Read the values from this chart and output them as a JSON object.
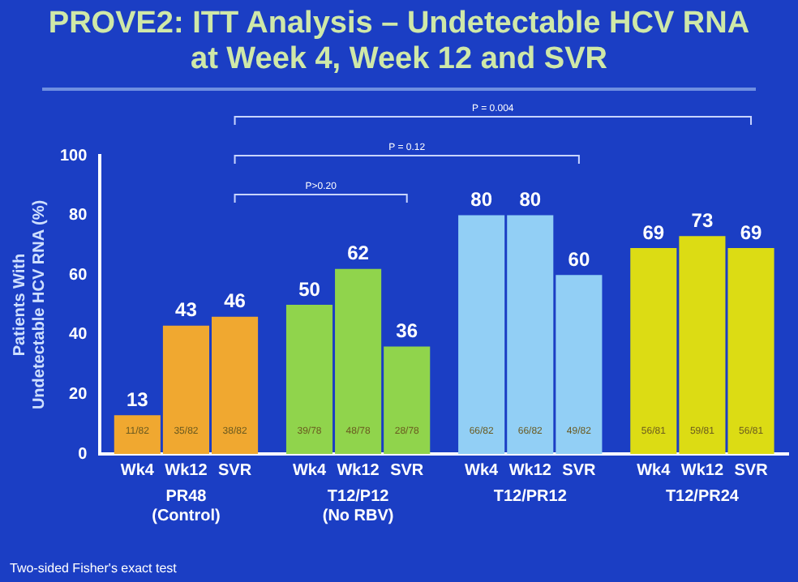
{
  "chart_data": {
    "type": "bar",
    "title": "PROVE2: ITT Analysis – Undetectable HCV RNA at Week 4, Week 12 and SVR",
    "ylabel": "Patients With Undetectable HCV RNA (%)",
    "categories": [
      "PR48 (Control)",
      "T12/P12 (No RBV)",
      "T12/PR12",
      "T12/PR24"
    ],
    "series": [
      {
        "name": "Wk4",
        "colors": [
          "#f0a830",
          "#90d44c",
          "#92cff5",
          "#dcdc14"
        ],
        "values": [
          13,
          50,
          80,
          69
        ]
      },
      {
        "name": "Wk12",
        "colors": [
          "#f0a830",
          "#90d44c",
          "#92cff5",
          "#dcdc14"
        ],
        "values": [
          43,
          62,
          80,
          73
        ]
      },
      {
        "name": "SVR",
        "colors": [
          "#f0a830",
          "#90d44c",
          "#92cff5",
          "#dcdc14"
        ],
        "values": [
          46,
          36,
          60,
          69
        ]
      }
    ],
    "ylim": [
      0,
      100
    ],
    "yticks": [
      0,
      20,
      40,
      60,
      80,
      100
    ],
    "grid": false,
    "legend": false,
    "data_labels": true,
    "annotations": [
      "P>0.20",
      "P = 0.12",
      "P = 0.004",
      "Two-sided Fisher's exact test",
      "11/82",
      "39/78",
      "66/82",
      "56/81",
      "35/82",
      "48/78",
      "66/82",
      "59/81",
      "38/82",
      "28/78",
      "49/82",
      "56/81"
    ]
  }
}
